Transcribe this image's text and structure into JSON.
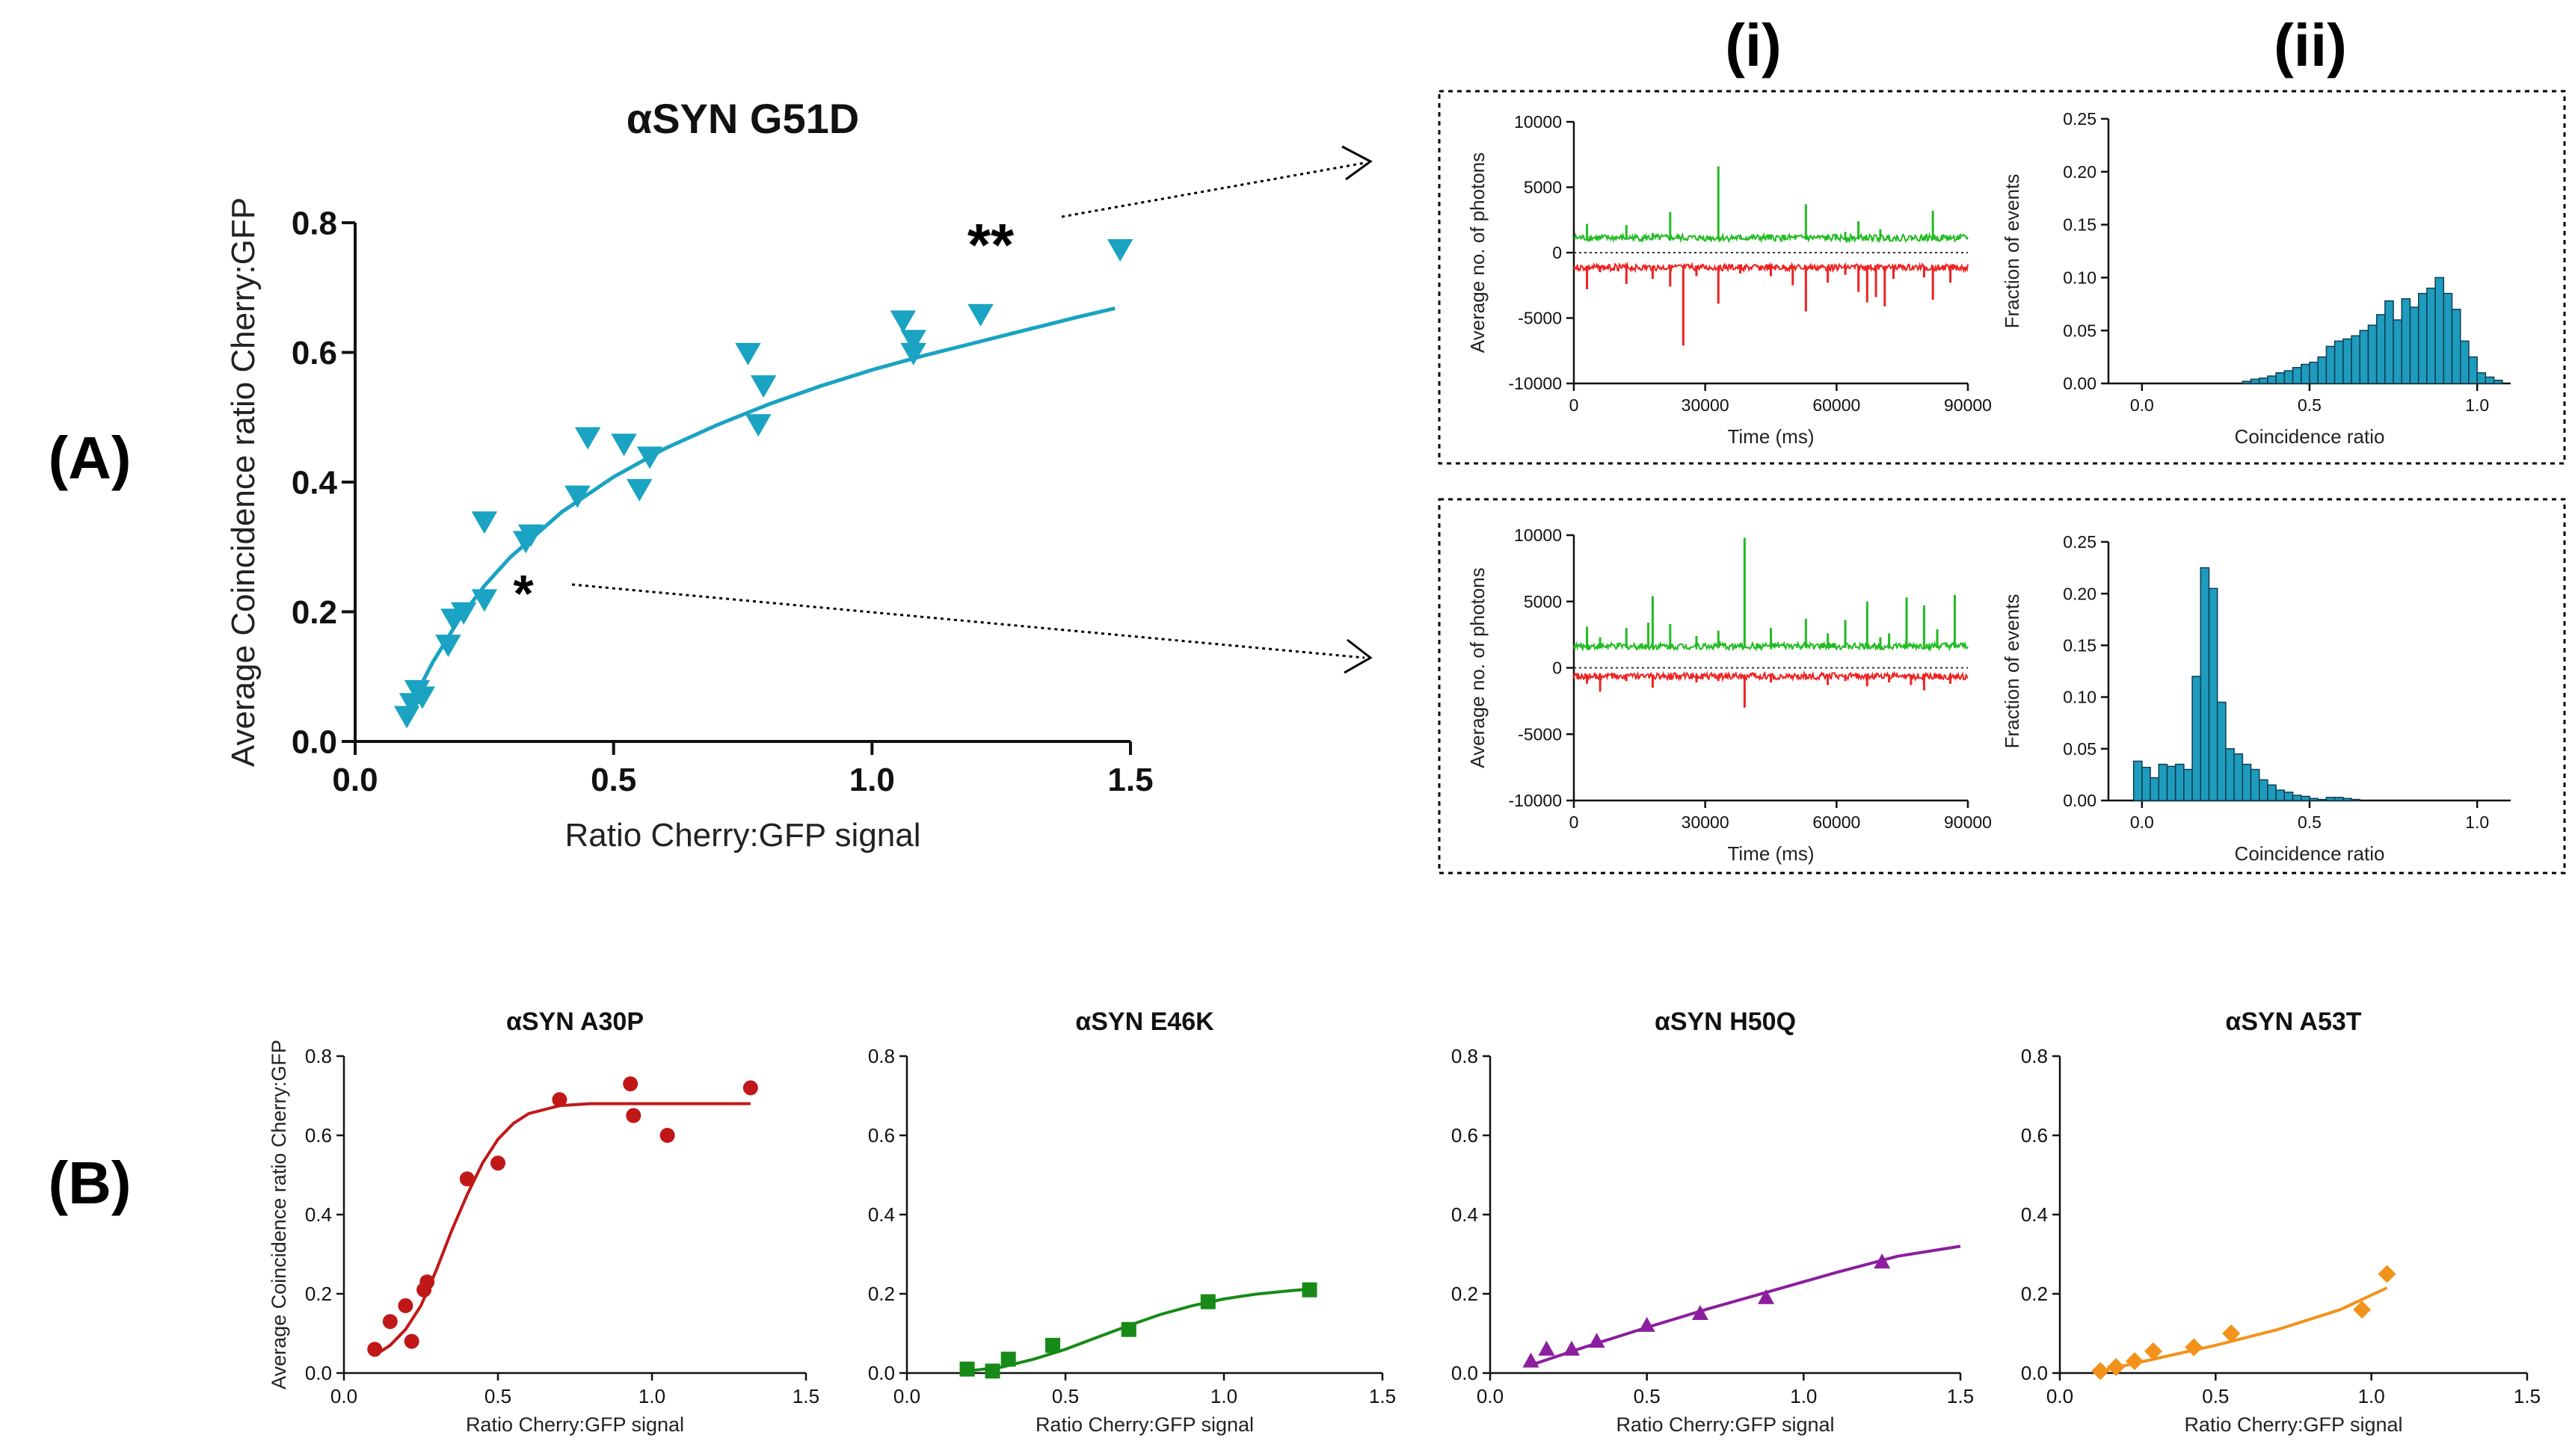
{
  "panel_labels": {
    "a": "(A)",
    "b": "(B)",
    "i": "(i)",
    "ii": "(ii)"
  },
  "annotations": {
    "double_star": "**",
    "single_star": "*"
  },
  "chart_data": [
    {
      "id": "a_main",
      "type": "scatter",
      "title": "αSYN G51D",
      "xlabel": "Ratio Cherry:GFP signal",
      "ylabel": "Average Coincidence ratio Cherry:GFP",
      "xlim": [
        0,
        1.5
      ],
      "ylim": [
        0,
        0.8
      ],
      "xticks": [
        "0.0",
        "0.5",
        "1.0",
        "1.5"
      ],
      "yticks": [
        "0.0",
        "0.2",
        "0.4",
        "0.6",
        "0.8"
      ],
      "marker": "triangle-down",
      "color": "#1aa3c2",
      "points": [
        [
          0.1,
          0.04
        ],
        [
          0.11,
          0.06
        ],
        [
          0.12,
          0.08
        ],
        [
          0.13,
          0.07
        ],
        [
          0.18,
          0.15
        ],
        [
          0.19,
          0.19
        ],
        [
          0.21,
          0.2
        ],
        [
          0.25,
          0.22
        ],
        [
          0.25,
          0.34
        ],
        [
          0.33,
          0.31
        ],
        [
          0.34,
          0.32
        ],
        [
          0.43,
          0.38
        ],
        [
          0.45,
          0.47
        ],
        [
          0.52,
          0.46
        ],
        [
          0.55,
          0.39
        ],
        [
          0.57,
          0.44
        ],
        [
          0.76,
          0.6
        ],
        [
          0.78,
          0.49
        ],
        [
          0.79,
          0.55
        ],
        [
          1.06,
          0.65
        ],
        [
          1.08,
          0.62
        ],
        [
          1.08,
          0.6
        ],
        [
          1.21,
          0.66
        ],
        [
          1.48,
          0.76
        ]
      ],
      "fit": [
        [
          0.1,
          0.045
        ],
        [
          0.15,
          0.122
        ],
        [
          0.2,
          0.187
        ],
        [
          0.25,
          0.24
        ],
        [
          0.3,
          0.284
        ],
        [
          0.4,
          0.354
        ],
        [
          0.5,
          0.408
        ],
        [
          0.6,
          0.452
        ],
        [
          0.7,
          0.488
        ],
        [
          0.8,
          0.52
        ],
        [
          0.9,
          0.548
        ],
        [
          1.0,
          0.573
        ],
        [
          1.1,
          0.595
        ],
        [
          1.2,
          0.615
        ],
        [
          1.3,
          0.635
        ],
        [
          1.4,
          0.655
        ],
        [
          1.47,
          0.668
        ]
      ]
    },
    {
      "id": "a_trace_top",
      "type": "line",
      "xlabel": "Time (ms)",
      "ylabel": "Average no. of photons",
      "xlim": [
        0,
        90000
      ],
      "ylim": [
        -10000,
        10000
      ],
      "xticks": [
        "0",
        "30000",
        "60000",
        "90000"
      ],
      "yticks": [
        "-10000",
        "-5000",
        "0",
        "5000",
        "10000"
      ],
      "series": [
        {
          "name": "green",
          "color": "#22bb22",
          "baseline": 1000,
          "spikes": [
            [
              3000,
              2200
            ],
            [
              6000,
              1200
            ],
            [
              12000,
              2100
            ],
            [
              18000,
              1500
            ],
            [
              22000,
              3100
            ],
            [
              28000,
              1100
            ],
            [
              33000,
              6600
            ],
            [
              38000,
              1300
            ],
            [
              45000,
              1400
            ],
            [
              53000,
              3700
            ],
            [
              58000,
              1200
            ],
            [
              62000,
              1600
            ],
            [
              65000,
              2400
            ],
            [
              68000,
              1100
            ],
            [
              70000,
              1800
            ],
            [
              72000,
              1300
            ],
            [
              80000,
              1100
            ],
            [
              82000,
              3200
            ],
            [
              86000,
              1200
            ]
          ]
        },
        {
          "name": "red",
          "color": "#ee2222",
          "baseline": -1000,
          "spikes": [
            [
              3000,
              -2800
            ],
            [
              6000,
              -1500
            ],
            [
              12000,
              -2400
            ],
            [
              18000,
              -2000
            ],
            [
              22000,
              -2600
            ],
            [
              25000,
              -7100
            ],
            [
              28000,
              -1800
            ],
            [
              33000,
              -3900
            ],
            [
              38000,
              -1600
            ],
            [
              45000,
              -1800
            ],
            [
              50000,
              -2500
            ],
            [
              53000,
              -4500
            ],
            [
              58000,
              -2300
            ],
            [
              62000,
              -1700
            ],
            [
              65000,
              -3000
            ],
            [
              67000,
              -3800
            ],
            [
              69000,
              -3400
            ],
            [
              71000,
              -4100
            ],
            [
              73000,
              -2000
            ],
            [
              80000,
              -1900
            ],
            [
              82000,
              -3600
            ],
            [
              86000,
              -2300
            ]
          ]
        }
      ]
    },
    {
      "id": "a_hist_top",
      "type": "bar",
      "xlabel": "Coincidence ratio",
      "ylabel": "Fraction of events",
      "xlim": [
        -0.1,
        1.1
      ],
      "ylim": [
        0,
        0.25
      ],
      "xticks": [
        "0.0",
        "0.5",
        "1.0"
      ],
      "yticks": [
        "0.00",
        "0.05",
        "0.10",
        "0.15",
        "0.20",
        "0.25"
      ],
      "bin_width": 0.025,
      "bin_start": 0.3,
      "values": [
        0.002,
        0.004,
        0.005,
        0.007,
        0.01,
        0.012,
        0.015,
        0.018,
        0.02,
        0.025,
        0.035,
        0.04,
        0.042,
        0.045,
        0.05,
        0.055,
        0.065,
        0.078,
        0.06,
        0.08,
        0.072,
        0.085,
        0.09,
        0.1,
        0.085,
        0.07,
        0.04,
        0.025,
        0.01,
        0.006,
        0.003
      ]
    },
    {
      "id": "a_trace_bottom",
      "type": "line",
      "xlabel": "Time (ms)",
      "ylabel": "Average no. of photons",
      "xlim": [
        0,
        90000
      ],
      "ylim": [
        -10000,
        10000
      ],
      "xticks": [
        "0",
        "30000",
        "60000",
        "90000"
      ],
      "yticks": [
        "-10000",
        "-5000",
        "0",
        "5000",
        "10000"
      ],
      "series": [
        {
          "name": "green",
          "color": "#22bb22",
          "baseline": 1500,
          "spikes": [
            [
              3000,
              3100
            ],
            [
              6000,
              2300
            ],
            [
              12000,
              3000
            ],
            [
              17000,
              3400
            ],
            [
              18000,
              5400
            ],
            [
              22000,
              3300
            ],
            [
              28000,
              2400
            ],
            [
              33000,
              2800
            ],
            [
              39000,
              9800
            ],
            [
              45000,
              3000
            ],
            [
              53000,
              3700
            ],
            [
              58000,
              2600
            ],
            [
              62000,
              3600
            ],
            [
              67000,
              5000
            ],
            [
              70000,
              2300
            ],
            [
              72000,
              2600
            ],
            [
              76000,
              5300
            ],
            [
              80000,
              4700
            ],
            [
              83000,
              2900
            ],
            [
              87000,
              5500
            ]
          ]
        },
        {
          "name": "red",
          "color": "#ee2222",
          "baseline": -500,
          "spikes": [
            [
              3000,
              -1200
            ],
            [
              6000,
              -1800
            ],
            [
              12000,
              -1000
            ],
            [
              18000,
              -1500
            ],
            [
              22000,
              -900
            ],
            [
              28000,
              -1100
            ],
            [
              33000,
              -1000
            ],
            [
              39000,
              -3000
            ],
            [
              45000,
              -1100
            ],
            [
              53000,
              -900
            ],
            [
              58000,
              -1300
            ],
            [
              62000,
              -1000
            ],
            [
              67000,
              -1400
            ],
            [
              72000,
              -1100
            ],
            [
              77000,
              -1300
            ],
            [
              80000,
              -1700
            ],
            [
              86000,
              -1200
            ]
          ]
        }
      ]
    },
    {
      "id": "a_hist_bottom",
      "type": "bar",
      "xlabel": "Coincidence ratio",
      "ylabel": "Fraction of events",
      "xlim": [
        -0.1,
        1.1
      ],
      "ylim": [
        0,
        0.25
      ],
      "xticks": [
        "0.0",
        "0.5",
        "1.0"
      ],
      "yticks": [
        "0.00",
        "0.05",
        "0.10",
        "0.15",
        "0.20",
        "0.25"
      ],
      "bin_width": 0.025,
      "bin_start": -0.025,
      "values": [
        0.038,
        0.032,
        0.022,
        0.035,
        0.033,
        0.035,
        0.03,
        0.12,
        0.225,
        0.205,
        0.095,
        0.05,
        0.045,
        0.035,
        0.03,
        0.02,
        0.015,
        0.01,
        0.008,
        0.005,
        0.004,
        0.002,
        0.001,
        0.003,
        0.003,
        0.002,
        0.001
      ]
    },
    {
      "id": "b_a30p",
      "type": "scatter",
      "title": "αSYN A30P",
      "xlabel": "Ratio Cherry:GFP signal",
      "ylabel": "Average Coincidence ratio Cherry:GFP",
      "xlim": [
        0,
        1.5
      ],
      "ylim": [
        0,
        0.8
      ],
      "xticks": [
        "0.0",
        "0.5",
        "1.0",
        "1.5"
      ],
      "yticks": [
        "0.0",
        "0.2",
        "0.4",
        "0.6",
        "0.8"
      ],
      "marker": "circle",
      "color": "#c01818",
      "points": [
        [
          0.1,
          0.06
        ],
        [
          0.15,
          0.13
        ],
        [
          0.2,
          0.17
        ],
        [
          0.22,
          0.08
        ],
        [
          0.26,
          0.21
        ],
        [
          0.27,
          0.23
        ],
        [
          0.4,
          0.49
        ],
        [
          0.5,
          0.53
        ],
        [
          0.7,
          0.69
        ],
        [
          0.93,
          0.73
        ],
        [
          0.94,
          0.65
        ],
        [
          1.05,
          0.6
        ],
        [
          1.32,
          0.72
        ]
      ],
      "fit": [
        [
          0.1,
          0.045
        ],
        [
          0.15,
          0.07
        ],
        [
          0.2,
          0.11
        ],
        [
          0.25,
          0.17
        ],
        [
          0.3,
          0.26
        ],
        [
          0.35,
          0.36
        ],
        [
          0.4,
          0.45
        ],
        [
          0.45,
          0.53
        ],
        [
          0.5,
          0.59
        ],
        [
          0.55,
          0.63
        ],
        [
          0.6,
          0.655
        ],
        [
          0.7,
          0.675
        ],
        [
          0.8,
          0.68
        ],
        [
          1.0,
          0.68
        ],
        [
          1.32,
          0.68
        ]
      ]
    },
    {
      "id": "b_e46k",
      "type": "scatter",
      "title": "αSYN E46K",
      "xlabel": "Ratio Cherry:GFP signal",
      "ylabel": "",
      "xlim": [
        0,
        1.5
      ],
      "ylim": [
        0,
        0.8
      ],
      "xticks": [
        "0.0",
        "0.5",
        "1.0",
        "1.5"
      ],
      "yticks": [
        "0.0",
        "0.2",
        "0.4",
        "0.6",
        "0.8"
      ],
      "marker": "square",
      "color": "#178a17",
      "points": [
        [
          0.19,
          0.01
        ],
        [
          0.27,
          0.005
        ],
        [
          0.32,
          0.035
        ],
        [
          0.46,
          0.07
        ],
        [
          0.7,
          0.11
        ],
        [
          0.95,
          0.18
        ],
        [
          1.27,
          0.21
        ]
      ],
      "fit": [
        [
          0.19,
          0.005
        ],
        [
          0.3,
          0.015
        ],
        [
          0.4,
          0.035
        ],
        [
          0.5,
          0.06
        ],
        [
          0.6,
          0.09
        ],
        [
          0.7,
          0.12
        ],
        [
          0.8,
          0.148
        ],
        [
          0.9,
          0.17
        ],
        [
          1.0,
          0.187
        ],
        [
          1.1,
          0.199
        ],
        [
          1.2,
          0.207
        ],
        [
          1.27,
          0.212
        ]
      ]
    },
    {
      "id": "b_h50q",
      "type": "scatter",
      "title": "αSYN H50Q",
      "xlabel": "Ratio Cherry:GFP signal",
      "ylabel": "",
      "xlim": [
        0,
        1.5
      ],
      "ylim": [
        0,
        0.8
      ],
      "xticks": [
        "0.0",
        "0.5",
        "1.0",
        "1.5"
      ],
      "yticks": [
        "0.0",
        "0.2",
        "0.4",
        "0.6",
        "0.8"
      ],
      "marker": "triangle-up",
      "color": "#8b1e9e",
      "points": [
        [
          0.13,
          0.03
        ],
        [
          0.18,
          0.06
        ],
        [
          0.26,
          0.06
        ],
        [
          0.34,
          0.08
        ],
        [
          0.5,
          0.12
        ],
        [
          0.67,
          0.15
        ],
        [
          0.88,
          0.19
        ],
        [
          1.25,
          0.28
        ]
      ],
      "fit": [
        [
          0.13,
          0.02
        ],
        [
          0.3,
          0.065
        ],
        [
          0.5,
          0.115
        ],
        [
          0.7,
          0.163
        ],
        [
          0.9,
          0.208
        ],
        [
          1.1,
          0.253
        ],
        [
          1.3,
          0.295
        ],
        [
          1.5,
          0.32
        ]
      ]
    },
    {
      "id": "b_a53t",
      "type": "scatter",
      "title": "αSYN A53T",
      "xlabel": "Ratio Cherry:GFP signal",
      "ylabel": "",
      "xlim": [
        0,
        1.5
      ],
      "ylim": [
        0,
        0.8
      ],
      "xticks": [
        "0.0",
        "0.5",
        "1.0",
        "1.5"
      ],
      "yticks": [
        "0.0",
        "0.2",
        "0.4",
        "0.6",
        "0.8"
      ],
      "marker": "diamond",
      "color": "#f2921b",
      "points": [
        [
          0.13,
          0.005
        ],
        [
          0.18,
          0.015
        ],
        [
          0.24,
          0.03
        ],
        [
          0.3,
          0.055
        ],
        [
          0.43,
          0.065
        ],
        [
          0.55,
          0.1
        ],
        [
          0.97,
          0.16
        ],
        [
          1.05,
          0.25
        ]
      ],
      "fit": [
        [
          0.13,
          0.005
        ],
        [
          0.3,
          0.035
        ],
        [
          0.5,
          0.07
        ],
        [
          0.7,
          0.11
        ],
        [
          0.9,
          0.16
        ],
        [
          1.05,
          0.215
        ]
      ]
    }
  ]
}
